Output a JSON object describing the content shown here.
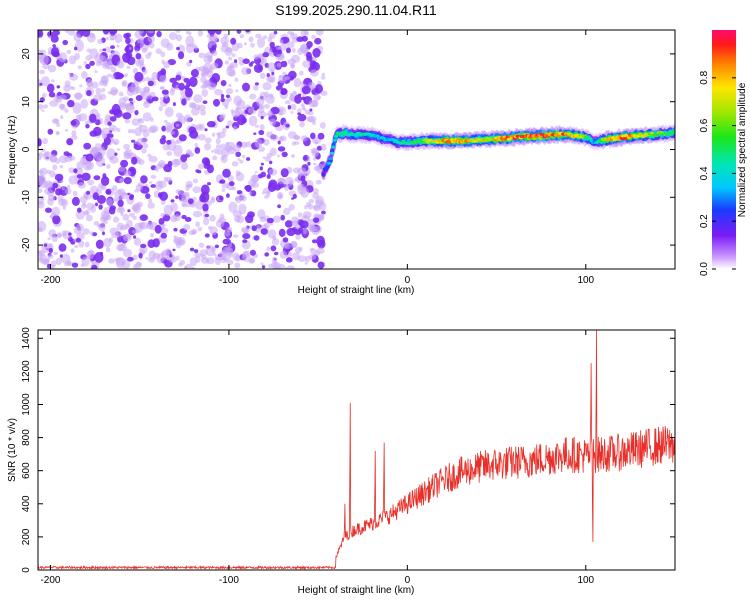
{
  "title": "S199.2025.290.11.04.R11",
  "chart_data": [
    {
      "type": "heatmap",
      "xlabel": "Height of straight line (km)",
      "ylabel": "Frequency (Hz)",
      "xlim": [
        -207,
        150
      ],
      "ylim": [
        -25,
        25
      ],
      "xticks": [
        -200,
        -100,
        0,
        100
      ],
      "yticks": [
        -20,
        -10,
        0,
        10,
        20
      ],
      "noise_region_x": [
        -207,
        -50
      ],
      "ridge": {
        "x": [
          -47,
          -43,
          -40,
          -35,
          -30,
          -25,
          -20,
          -15,
          -10,
          -5,
          0,
          10,
          20,
          30,
          40,
          50,
          60,
          70,
          80,
          90,
          100,
          105,
          110,
          120,
          130,
          140,
          150
        ],
        "freq": [
          -5,
          -2,
          3,
          3.5,
          3,
          3.2,
          3,
          2.5,
          2,
          1.5,
          1.5,
          1.8,
          1.8,
          1.8,
          2,
          2.2,
          2.5,
          2.8,
          3,
          3.2,
          2.5,
          1.5,
          2,
          2.5,
          3,
          3.2,
          3.5
        ],
        "amplitude": [
          0.2,
          0.35,
          0.45,
          0.5,
          0.4,
          0.45,
          0.4,
          0.35,
          0.35,
          0.4,
          0.45,
          0.6,
          0.8,
          0.85,
          0.7,
          0.75,
          0.85,
          0.9,
          0.9,
          0.8,
          0.6,
          0.3,
          0.7,
          0.85,
          0.75,
          0.6,
          0.5
        ]
      }
    },
    {
      "type": "line",
      "xlabel": "Height of straight line (km)",
      "ylabel": "SNR (10 * v/v)",
      "xlim": [
        -207,
        150
      ],
      "ylim": [
        0,
        1450
      ],
      "xticks": [
        -200,
        -100,
        0,
        100
      ],
      "yticks": [
        0,
        200,
        400,
        600,
        800,
        1000,
        1200,
        1400
      ],
      "color": "#e8302a",
      "baseline": {
        "x_from": -207,
        "x_to": -40,
        "value": 15
      },
      "trend": {
        "x": [
          -40,
          -35,
          -30,
          -20,
          -10,
          0,
          10,
          20,
          30,
          40,
          50,
          60,
          70,
          80,
          90,
          100,
          110,
          120,
          130,
          140,
          150
        ],
        "y": [
          80,
          200,
          240,
          280,
          330,
          400,
          470,
          540,
          590,
          620,
          640,
          650,
          660,
          680,
          700,
          690,
          700,
          710,
          730,
          750,
          760
        ]
      },
      "spikes": [
        {
          "x": -32,
          "y": 1010
        },
        {
          "x": -35,
          "y": 400
        },
        {
          "x": -18,
          "y": 720
        },
        {
          "x": -13,
          "y": 770
        },
        {
          "x": 103,
          "y": 1250
        },
        {
          "x": 106,
          "y": 1450
        },
        {
          "x": 104,
          "y": 170
        }
      ]
    }
  ],
  "colorbar": {
    "label": "Normalized spectral amplitude",
    "range": [
      0,
      1
    ],
    "ticks": [
      "0.0",
      "0.2",
      "0.4",
      "0.6",
      "0.8"
    ],
    "tick_values": [
      0.0,
      0.2,
      0.4,
      0.6,
      0.8
    ]
  },
  "colors": {
    "noise_purple": "#7b2cf0",
    "noise_lavender": "#c9a6f5",
    "line_red": "#e8302a"
  }
}
